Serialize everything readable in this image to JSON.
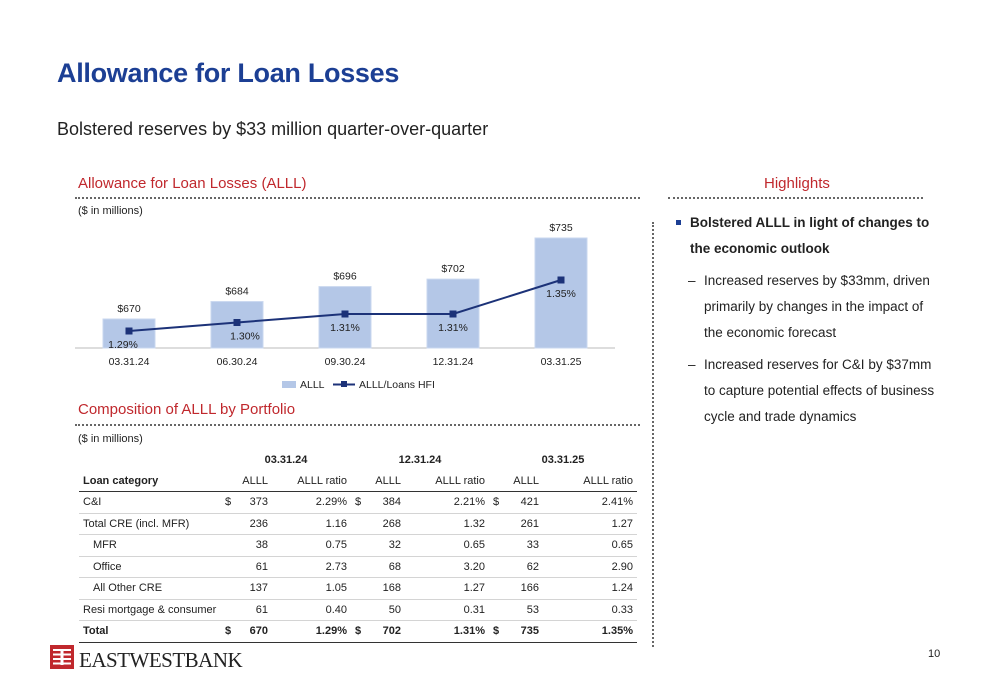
{
  "page": {
    "title": "Allowance for Loan Losses",
    "subtitle": "Bolstered reserves by $33 million quarter-over-quarter",
    "page_number": "10"
  },
  "chart_section": {
    "heading": "Allowance for Loan Losses (ALLL)",
    "unit_note": "($ in millions)"
  },
  "chart_data": {
    "type": "bar",
    "categories": [
      "03.31.24",
      "06.30.24",
      "09.30.24",
      "12.31.24",
      "03.31.25"
    ],
    "series": [
      {
        "name": "ALLL",
        "type": "bar",
        "values": [
          670,
          684,
          696,
          702,
          735
        ],
        "labels": [
          "$670",
          "$684",
          "$696",
          "$702",
          "$735"
        ],
        "color": "#b4c7e7"
      },
      {
        "name": "ALLL/Loans HFI",
        "type": "line",
        "values": [
          1.29,
          1.3,
          1.31,
          1.31,
          1.35
        ],
        "labels": [
          "1.29%",
          "1.30%",
          "1.31%",
          "1.31%",
          "1.35%"
        ],
        "color": "#1c3278"
      }
    ],
    "legend": "bottom"
  },
  "table_section": {
    "heading": "Composition of ALLL by Portfolio",
    "unit_note": "($ in millions)",
    "groups": [
      "03.31.24",
      "12.31.24",
      "03.31.25"
    ],
    "columns": [
      "Loan category",
      "ALLL",
      "ALLL ratio",
      "ALLL",
      "ALLL ratio",
      "ALLL",
      "ALLL ratio"
    ],
    "currency": "$",
    "rows": [
      {
        "label": "C&I",
        "indent": false,
        "cells": [
          "373",
          "2.29%",
          "384",
          "2.21%",
          "421",
          "2.41%"
        ]
      },
      {
        "label": "Total CRE (incl. MFR)",
        "indent": false,
        "cells": [
          "236",
          "1.16",
          "268",
          "1.32",
          "261",
          "1.27"
        ]
      },
      {
        "label": "MFR",
        "indent": true,
        "cells": [
          "38",
          "0.75",
          "32",
          "0.65",
          "33",
          "0.65"
        ]
      },
      {
        "label": "Office",
        "indent": true,
        "cells": [
          "61",
          "2.73",
          "68",
          "3.20",
          "62",
          "2.90"
        ]
      },
      {
        "label": "All Other CRE",
        "indent": true,
        "cells": [
          "137",
          "1.05",
          "168",
          "1.27",
          "166",
          "1.24"
        ]
      },
      {
        "label": "Resi mortgage & consumer",
        "indent": false,
        "cells": [
          "61",
          "0.40",
          "50",
          "0.31",
          "53",
          "0.33"
        ]
      }
    ],
    "total": {
      "label": "Total",
      "cells": [
        "670",
        "1.29%",
        "702",
        "1.31%",
        "735",
        "1.35%"
      ]
    }
  },
  "highlights": {
    "heading": "Highlights",
    "main": "Bolstered ALLL in light of changes to the economic outlook",
    "subs": [
      "Increased reserves by $33mm, driven primarily by changes in the impact of the economic forecast",
      "Increased reserves for C&I by $37mm to capture potential effects of business cycle and trade dynamics"
    ]
  },
  "brand": {
    "logo_text": "EASTWESTBANK",
    "color": "#c0282d"
  }
}
